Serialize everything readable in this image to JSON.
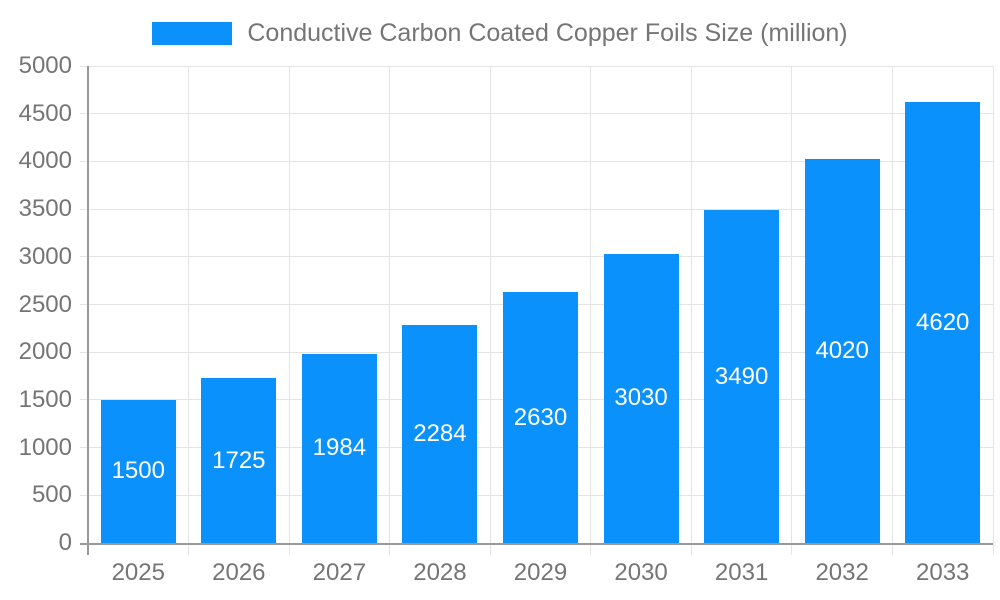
{
  "legend": {
    "label": "Conductive Carbon Coated Copper Foils Size (million)",
    "swatch_color": "#0a91fb"
  },
  "chart_data": {
    "type": "bar",
    "categories": [
      "2025",
      "2026",
      "2027",
      "2028",
      "2029",
      "2030",
      "2031",
      "2032",
      "2033"
    ],
    "values": [
      1500,
      1725,
      1984,
      2284,
      2630,
      3030,
      3490,
      4020,
      4620
    ],
    "series_name": "Conductive Carbon Coated Copper Foils Size (million)",
    "title": "",
    "xlabel": "",
    "ylabel": "",
    "ylim": [
      0,
      5000
    ],
    "ytick_step": 500,
    "yticks": [
      0,
      500,
      1000,
      1500,
      2000,
      2500,
      3000,
      3500,
      4000,
      4500,
      5000
    ],
    "grid": true,
    "legend_position": "top",
    "value_labels": "inside-center-white",
    "colors": {
      "bar": "#0a91fb",
      "value_label": "#ffffff",
      "axis_label": "#757575",
      "gridline": "#e4e4e4",
      "axis_line": "#999999",
      "background": "#ffffff"
    }
  }
}
